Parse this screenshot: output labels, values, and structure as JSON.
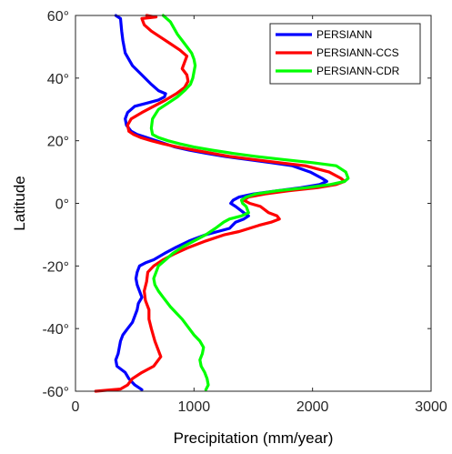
{
  "chart_data": {
    "type": "line",
    "xlabel": "Precipitation (mm/year)",
    "ylabel": "Latitude",
    "xlim": [
      0,
      3000
    ],
    "ylim": [
      -60,
      60
    ],
    "x_ticks": [
      0,
      1000,
      2000,
      3000
    ],
    "y_ticks": [
      -60,
      -40,
      -20,
      0,
      20,
      40,
      60
    ],
    "x_tick_labels": [
      "0",
      "1000",
      "2000",
      "3000"
    ],
    "y_tick_labels": [
      "-60°",
      "-40°",
      "-20°",
      "0°",
      "20°",
      "40°",
      "60°"
    ],
    "grid": false,
    "legend_position": "top-right",
    "series": [
      {
        "name": "PERSIANN",
        "color": "#0000ff",
        "points": [
          [
            340,
            60
          ],
          [
            380,
            59
          ],
          [
            390,
            55
          ],
          [
            400,
            52
          ],
          [
            420,
            48
          ],
          [
            480,
            44
          ],
          [
            560,
            41
          ],
          [
            640,
            38
          ],
          [
            700,
            36
          ],
          [
            760,
            35
          ],
          [
            750,
            34
          ],
          [
            700,
            33
          ],
          [
            600,
            32
          ],
          [
            500,
            31
          ],
          [
            440,
            29
          ],
          [
            420,
            27
          ],
          [
            430,
            25
          ],
          [
            470,
            23
          ],
          [
            520,
            22
          ],
          [
            600,
            21
          ],
          [
            680,
            20
          ],
          [
            760,
            19
          ],
          [
            840,
            18
          ],
          [
            960,
            17
          ],
          [
            1100,
            16
          ],
          [
            1260,
            15
          ],
          [
            1450,
            14
          ],
          [
            1650,
            13
          ],
          [
            1830,
            12
          ],
          [
            1980,
            10
          ],
          [
            2080,
            8
          ],
          [
            2120,
            7
          ],
          [
            2060,
            6
          ],
          [
            1900,
            5
          ],
          [
            1700,
            4
          ],
          [
            1500,
            3
          ],
          [
            1380,
            2
          ],
          [
            1330,
            1
          ],
          [
            1310,
            0
          ],
          [
            1350,
            -1
          ],
          [
            1420,
            -3
          ],
          [
            1460,
            -4
          ],
          [
            1420,
            -5
          ],
          [
            1350,
            -6
          ],
          [
            1300,
            -8
          ],
          [
            1200,
            -9
          ],
          [
            1100,
            -10
          ],
          [
            960,
            -12
          ],
          [
            850,
            -14
          ],
          [
            750,
            -16
          ],
          [
            660,
            -18
          ],
          [
            590,
            -19
          ],
          [
            540,
            -20
          ],
          [
            520,
            -22
          ],
          [
            510,
            -24
          ],
          [
            520,
            -26
          ],
          [
            540,
            -28
          ],
          [
            560,
            -30
          ],
          [
            530,
            -32
          ],
          [
            520,
            -34
          ],
          [
            500,
            -36
          ],
          [
            480,
            -38
          ],
          [
            440,
            -40
          ],
          [
            400,
            -42
          ],
          [
            380,
            -44
          ],
          [
            370,
            -46
          ],
          [
            360,
            -48
          ],
          [
            340,
            -50
          ],
          [
            350,
            -52
          ],
          [
            420,
            -54
          ],
          [
            450,
            -56
          ],
          [
            500,
            -58
          ],
          [
            560,
            -59.5
          ]
        ]
      },
      {
        "name": "PERSIANN-CCS",
        "color": "#ff0000",
        "points": [
          [
            600,
            60
          ],
          [
            680,
            59.5
          ],
          [
            560,
            59
          ],
          [
            580,
            57
          ],
          [
            640,
            55
          ],
          [
            720,
            53
          ],
          [
            800,
            51
          ],
          [
            880,
            49
          ],
          [
            940,
            47
          ],
          [
            920,
            45
          ],
          [
            900,
            43
          ],
          [
            940,
            41
          ],
          [
            950,
            39
          ],
          [
            920,
            37
          ],
          [
            850,
            35
          ],
          [
            760,
            33
          ],
          [
            660,
            31
          ],
          [
            560,
            29
          ],
          [
            470,
            27
          ],
          [
            440,
            25
          ],
          [
            450,
            23
          ],
          [
            490,
            22
          ],
          [
            550,
            21
          ],
          [
            640,
            20
          ],
          [
            740,
            19
          ],
          [
            860,
            18
          ],
          [
            1000,
            17
          ],
          [
            1150,
            16
          ],
          [
            1300,
            15
          ],
          [
            1500,
            14
          ],
          [
            1720,
            13
          ],
          [
            1940,
            12
          ],
          [
            2140,
            10
          ],
          [
            2240,
            8
          ],
          [
            2270,
            7
          ],
          [
            2200,
            6
          ],
          [
            2040,
            5
          ],
          [
            1800,
            4
          ],
          [
            1600,
            3
          ],
          [
            1460,
            2
          ],
          [
            1420,
            1
          ],
          [
            1470,
            0
          ],
          [
            1560,
            -1
          ],
          [
            1630,
            -3
          ],
          [
            1700,
            -4
          ],
          [
            1720,
            -5
          ],
          [
            1650,
            -6
          ],
          [
            1550,
            -7
          ],
          [
            1380,
            -9
          ],
          [
            1260,
            -10
          ],
          [
            1100,
            -12
          ],
          [
            960,
            -14
          ],
          [
            840,
            -16
          ],
          [
            740,
            -18
          ],
          [
            660,
            -20
          ],
          [
            610,
            -22
          ],
          [
            600,
            -25
          ],
          [
            580,
            -28
          ],
          [
            590,
            -31
          ],
          [
            620,
            -34
          ],
          [
            620,
            -37
          ],
          [
            640,
            -40
          ],
          [
            670,
            -44
          ],
          [
            690,
            -46
          ],
          [
            720,
            -49
          ],
          [
            660,
            -52
          ],
          [
            560,
            -54
          ],
          [
            480,
            -56
          ],
          [
            440,
            -58
          ],
          [
            380,
            -59.3
          ],
          [
            170,
            -60
          ]
        ]
      },
      {
        "name": "PERSIANN-CDR",
        "color": "#00ff00",
        "points": [
          [
            740,
            60
          ],
          [
            800,
            58
          ],
          [
            830,
            56
          ],
          [
            860,
            54
          ],
          [
            900,
            52
          ],
          [
            940,
            50
          ],
          [
            980,
            48
          ],
          [
            1000,
            46
          ],
          [
            1010,
            44
          ],
          [
            1000,
            42
          ],
          [
            990,
            40
          ],
          [
            970,
            38
          ],
          [
            920,
            36
          ],
          [
            860,
            34
          ],
          [
            780,
            32
          ],
          [
            700,
            30
          ],
          [
            650,
            27
          ],
          [
            640,
            24
          ],
          [
            650,
            22
          ],
          [
            700,
            21
          ],
          [
            780,
            20
          ],
          [
            880,
            19
          ],
          [
            1000,
            18
          ],
          [
            1150,
            17
          ],
          [
            1320,
            16
          ],
          [
            1520,
            15
          ],
          [
            1750,
            14
          ],
          [
            2000,
            13
          ],
          [
            2200,
            12
          ],
          [
            2280,
            10
          ],
          [
            2300,
            8
          ],
          [
            2270,
            7
          ],
          [
            2150,
            6
          ],
          [
            1950,
            5
          ],
          [
            1700,
            4
          ],
          [
            1520,
            3
          ],
          [
            1440,
            2
          ],
          [
            1400,
            1
          ],
          [
            1410,
            0
          ],
          [
            1440,
            -1
          ],
          [
            1460,
            -3
          ],
          [
            1400,
            -4
          ],
          [
            1300,
            -5
          ],
          [
            1250,
            -6
          ],
          [
            1180,
            -8
          ],
          [
            1100,
            -10
          ],
          [
            1000,
            -12
          ],
          [
            900,
            -14
          ],
          [
            820,
            -16
          ],
          [
            760,
            -18
          ],
          [
            700,
            -20
          ],
          [
            680,
            -22
          ],
          [
            660,
            -24
          ],
          [
            670,
            -26
          ],
          [
            700,
            -28
          ],
          [
            740,
            -30
          ],
          [
            800,
            -33
          ],
          [
            850,
            -35
          ],
          [
            900,
            -37
          ],
          [
            960,
            -40
          ],
          [
            1000,
            -42
          ],
          [
            1050,
            -44
          ],
          [
            1080,
            -46
          ],
          [
            1070,
            -48
          ],
          [
            1050,
            -50
          ],
          [
            1060,
            -52
          ],
          [
            1090,
            -54
          ],
          [
            1110,
            -56
          ],
          [
            1120,
            -58
          ],
          [
            1100,
            -59.5
          ]
        ]
      }
    ]
  }
}
